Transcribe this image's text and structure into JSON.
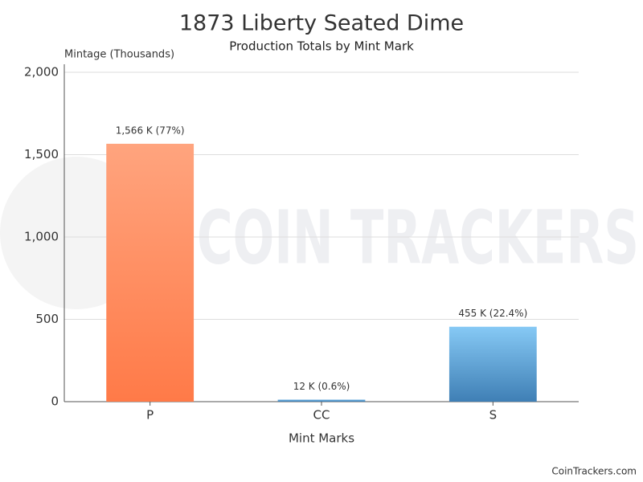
{
  "chart_data": {
    "type": "bar",
    "title": "1873 Liberty Seated Dime",
    "subtitle": "Production Totals by Mint Mark",
    "y_axis_label": "Mintage (Thousands)",
    "x_axis_label": "Mint Marks",
    "categories": [
      "P",
      "CC",
      "S"
    ],
    "values": [
      1566,
      12,
      455
    ],
    "value_labels": [
      "1,566 K (77%)",
      "12 K (0.6%)",
      "455 K (22.4%)"
    ],
    "colors": [
      [
        "#ffa47e",
        "#ff7a48"
      ],
      [
        "#6aaee0",
        "#3f7fb5"
      ],
      [
        "#86c9f5",
        "#3f7fb5"
      ]
    ],
    "ylim": [
      0,
      2000
    ],
    "yticks": [
      0,
      500,
      {
        "value": 1000,
        "label": "1,000"
      },
      {
        "value": 1500,
        "label": "1,500"
      },
      {
        "value": 2000,
        "label": "2,000"
      }
    ],
    "grid": true,
    "watermark": "COIN TRACKERS",
    "credit": "CoinTrackers.com"
  }
}
